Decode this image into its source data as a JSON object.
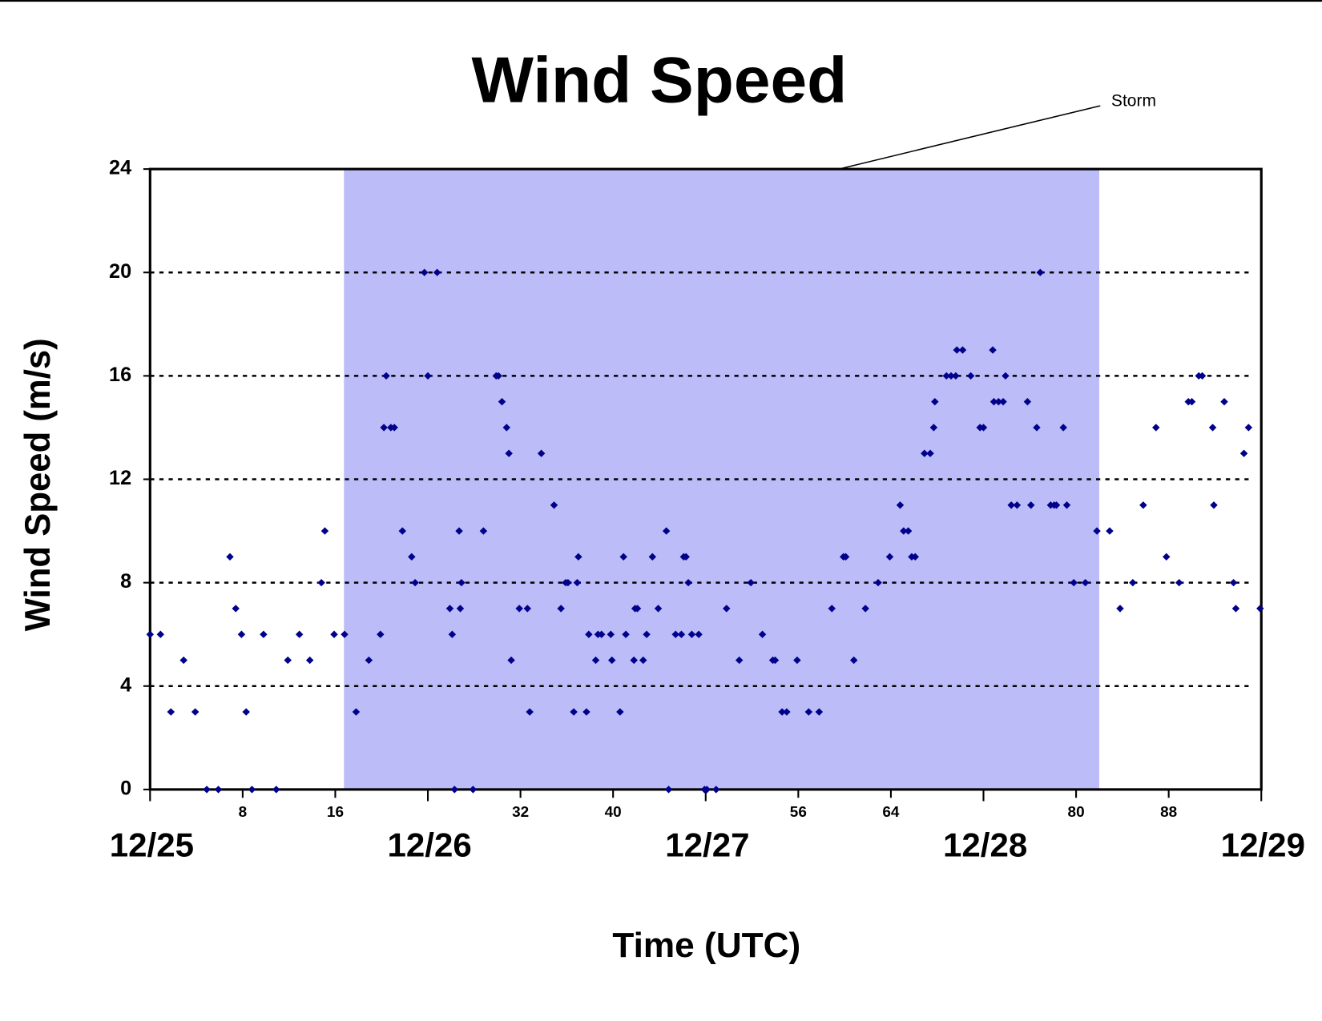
{
  "chart_data": {
    "type": "scatter",
    "title": "Wind Speed",
    "x_label": "Time (UTC)",
    "y_label": "Wind Speed (m/s)",
    "annotation": {
      "text": "Storm",
      "xlim": [
        16.75,
        82
      ],
      "color": "#bbbcf8"
    },
    "color": "#00008b",
    "x": [
      0.0,
      0.9,
      1.8,
      2.9,
      3.9,
      4.9,
      5.9,
      6.9,
      7.4,
      7.9,
      8.3,
      8.8,
      9.8,
      10.9,
      11.9,
      12.9,
      13.8,
      14.8,
      15.1,
      15.9,
      16.8,
      17.8,
      18.9,
      19.9,
      20.2,
      20.4,
      20.8,
      21.1,
      21.8,
      22.6,
      22.9,
      23.7,
      24.0,
      24.8,
      25.9,
      26.1,
      26.3,
      26.7,
      26.8,
      26.9,
      27.9,
      28.8,
      29.9,
      30.1,
      30.4,
      30.8,
      31.0,
      31.2,
      31.9,
      32.6,
      32.8,
      33.8,
      34.9,
      35.5,
      35.9,
      36.1,
      36.6,
      36.9,
      37.0,
      37.7,
      37.9,
      38.5,
      38.7,
      39.0,
      39.8,
      39.9,
      40.6,
      40.9,
      41.1,
      41.8,
      41.9,
      42.1,
      42.6,
      42.9,
      43.4,
      43.9,
      44.6,
      44.8,
      45.4,
      45.9,
      46.1,
      46.3,
      46.5,
      46.8,
      47.4,
      47.9,
      48.1,
      48.9,
      49.8,
      50.9,
      51.9,
      52.9,
      53.8,
      54.0,
      54.6,
      55.0,
      55.9,
      56.9,
      57.8,
      58.9,
      59.9,
      60.1,
      60.8,
      61.8,
      62.9,
      63.9,
      64.8,
      65.1,
      65.5,
      65.8,
      66.1,
      66.9,
      67.4,
      67.7,
      67.8,
      68.8,
      69.2,
      69.6,
      69.7,
      70.2,
      70.9,
      71.7,
      72.0,
      72.8,
      72.9,
      73.3,
      73.7,
      73.9,
      74.4,
      74.9,
      75.8,
      76.1,
      76.6,
      76.9,
      77.8,
      78.1,
      78.3,
      78.9,
      79.2,
      79.8,
      80.8,
      81.8,
      82.9,
      83.8,
      84.9,
      85.8,
      86.9,
      87.8,
      88.9,
      89.7,
      90.0,
      90.6,
      90.9,
      91.8,
      91.9,
      92.8,
      93.6,
      93.8,
      94.5,
      94.9,
      95.9
    ],
    "values": [
      6,
      6,
      3,
      5,
      3,
      0,
      0,
      9,
      7,
      6,
      3,
      0,
      6,
      0,
      5,
      6,
      5,
      8,
      10,
      6,
      6,
      3,
      5,
      6,
      14,
      16,
      14,
      14,
      10,
      9,
      8,
      20,
      16,
      20,
      7,
      6,
      0,
      10,
      7,
      8,
      0,
      10,
      16,
      16,
      15,
      14,
      13,
      5,
      7,
      7,
      3,
      13,
      11,
      7,
      8,
      8,
      3,
      8,
      9,
      3,
      6,
      5,
      6,
      6,
      6,
      5,
      3,
      9,
      6,
      5,
      7,
      7,
      5,
      6,
      9,
      7,
      10,
      0,
      6,
      6,
      9,
      9,
      8,
      6,
      6,
      0,
      0,
      0,
      7,
      5,
      8,
      6,
      5,
      5,
      3,
      3,
      5,
      3,
      3,
      7,
      9,
      9,
      5,
      7,
      8,
      9,
      11,
      10,
      10,
      9,
      9,
      13,
      13,
      14,
      15,
      16,
      16,
      16,
      17,
      17,
      16,
      14,
      14,
      17,
      15,
      15,
      15,
      16,
      11,
      11,
      15,
      11,
      14,
      20,
      11,
      11,
      11,
      14,
      11,
      8,
      8,
      10,
      10,
      7,
      8,
      11,
      14,
      9,
      8,
      15,
      15,
      16,
      16,
      14,
      11,
      15,
      8,
      7,
      13,
      14,
      7
    ],
    "xlim": [
      0,
      96
    ],
    "xticks": [
      {
        "value": 0,
        "label": "12/25"
      },
      {
        "value": 24,
        "label": "12/26"
      },
      {
        "value": 48,
        "label": "12/27"
      },
      {
        "value": 72,
        "label": "12/28"
      },
      {
        "value": 96,
        "label": "12/29"
      }
    ],
    "xticks_minor": [
      8,
      16,
      32,
      40,
      56,
      64,
      80,
      88
    ],
    "ylim": [
      0,
      24
    ],
    "yticks": [
      0,
      4,
      8,
      12,
      16,
      20,
      24
    ],
    "grid": true
  }
}
